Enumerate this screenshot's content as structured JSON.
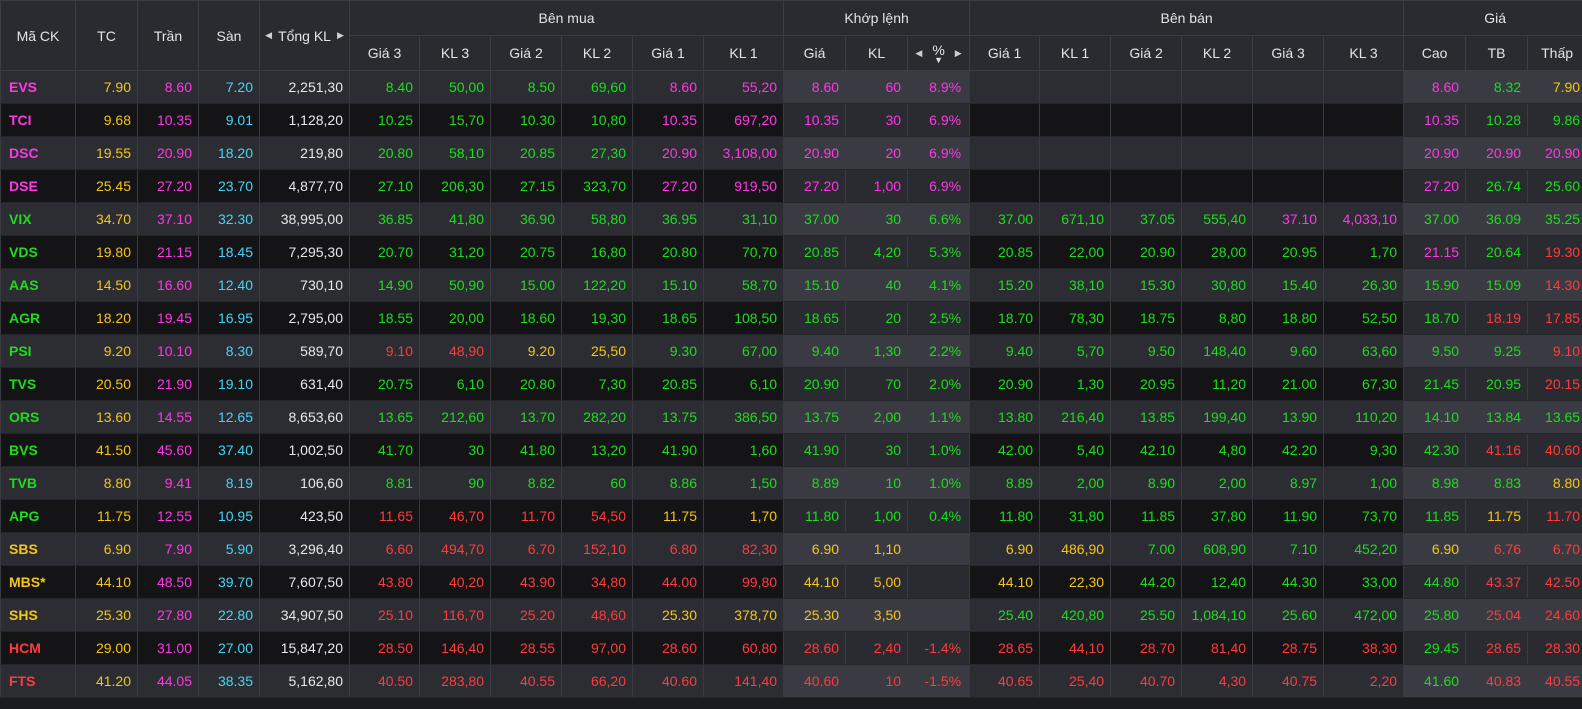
{
  "headers": {
    "symbol": "Mã CK",
    "ref": "TC",
    "ceil": "Trần",
    "floor": "Sàn",
    "total_vol": "Tổng KL",
    "buy_group": "Bên mua",
    "match_group": "Khớp lệnh",
    "sell_group": "Bên bán",
    "price_group": "Giá",
    "buy_cols": [
      "Giá 3",
      "KL 3",
      "Giá 2",
      "KL 2",
      "Giá 1",
      "KL 1"
    ],
    "match_cols": [
      "Giá",
      "KL",
      "%"
    ],
    "sell_cols": [
      "Giá 1",
      "KL 1",
      "Giá 2",
      "KL 2",
      "Giá 3",
      "KL 3"
    ],
    "price_cols": [
      "Cao",
      "TB",
      "Thấp"
    ]
  },
  "colors": {
    "reference": "#f5c518",
    "ceiling": "#ff37e4",
    "floor": "#45d4f5",
    "up": "#1cdd1c",
    "down": "#ff3b3b"
  },
  "rows": [
    {
      "sym": "EVS",
      "ref": "7.90",
      "ceil": "8.60",
      "floor": "7.20",
      "vol": "2,251,30",
      "b3": "8.40",
      "bv3": "50,00",
      "b2": "8.50",
      "bv2": "69,60",
      "b1": "8.60",
      "bv1": "55,20",
      "mp": "8.60",
      "mv": "60",
      "pct": "8.9%",
      "s1": "",
      "sv1": "",
      "s2": "",
      "sv2": "",
      "s3": "",
      "sv3": "",
      "hi": "8.60",
      "avg": "8.32",
      "lo": "7.90",
      "cls": {
        "sym": "c-ceil",
        "b3": "c-up",
        "bv3": "c-up",
        "b2": "c-up",
        "bv2": "c-up",
        "b1": "c-ceil",
        "bv1": "c-ceil",
        "mp": "c-ceil",
        "mv": "c-ceil",
        "pct": "c-ceil",
        "hi": "c-ceil",
        "avg": "c-up",
        "lo": "c-ref"
      }
    },
    {
      "sym": "TCI",
      "ref": "9.68",
      "ceil": "10.35",
      "floor": "9.01",
      "vol": "1,128,20",
      "b3": "10.25",
      "bv3": "15,70",
      "b2": "10.30",
      "bv2": "10,80",
      "b1": "10.35",
      "bv1": "697,20",
      "mp": "10.35",
      "mv": "30",
      "pct": "6.9%",
      "s1": "",
      "sv1": "",
      "s2": "",
      "sv2": "",
      "s3": "",
      "sv3": "",
      "hi": "10.35",
      "avg": "10.28",
      "lo": "9.86",
      "cls": {
        "sym": "c-ceil",
        "b3": "c-up",
        "bv3": "c-up",
        "b2": "c-up",
        "bv2": "c-up",
        "b1": "c-ceil",
        "bv1": "c-ceil",
        "mp": "c-ceil",
        "mv": "c-ceil",
        "pct": "c-ceil",
        "hi": "c-ceil",
        "avg": "c-up",
        "lo": "c-up"
      }
    },
    {
      "sym": "DSC",
      "ref": "19.55",
      "ceil": "20.90",
      "floor": "18.20",
      "vol": "219,80",
      "b3": "20.80",
      "bv3": "58,10",
      "b2": "20.85",
      "bv2": "27,30",
      "b1": "20.90",
      "bv1": "3,108,00",
      "mp": "20.90",
      "mv": "20",
      "pct": "6.9%",
      "s1": "",
      "sv1": "",
      "s2": "",
      "sv2": "",
      "s3": "",
      "sv3": "",
      "hi": "20.90",
      "avg": "20.90",
      "lo": "20.90",
      "cls": {
        "sym": "c-ceil",
        "b3": "c-up",
        "bv3": "c-up",
        "b2": "c-up",
        "bv2": "c-up",
        "b1": "c-ceil",
        "bv1": "c-ceil",
        "mp": "c-ceil",
        "mv": "c-ceil",
        "pct": "c-ceil",
        "hi": "c-ceil",
        "avg": "c-ceil",
        "lo": "c-ceil"
      }
    },
    {
      "sym": "DSE",
      "ref": "25.45",
      "ceil": "27.20",
      "floor": "23.70",
      "vol": "4,877,70",
      "b3": "27.10",
      "bv3": "206,30",
      "b2": "27.15",
      "bv2": "323,70",
      "b1": "27.20",
      "bv1": "919,50",
      "mp": "27.20",
      "mv": "1,00",
      "pct": "6.9%",
      "s1": "",
      "sv1": "",
      "s2": "",
      "sv2": "",
      "s3": "",
      "sv3": "",
      "hi": "27.20",
      "avg": "26.74",
      "lo": "25.60",
      "cls": {
        "sym": "c-ceil",
        "b3": "c-up",
        "bv3": "c-up",
        "b2": "c-up",
        "bv2": "c-up",
        "b1": "c-ceil",
        "bv1": "c-ceil",
        "mp": "c-ceil",
        "mv": "c-ceil",
        "pct": "c-ceil",
        "hi": "c-ceil",
        "avg": "c-up",
        "lo": "c-up"
      }
    },
    {
      "sym": "VIX",
      "ref": "34.70",
      "ceil": "37.10",
      "floor": "32.30",
      "vol": "38,995,00",
      "b3": "36.85",
      "bv3": "41,80",
      "b2": "36.90",
      "bv2": "58,80",
      "b1": "36.95",
      "bv1": "31,10",
      "mp": "37.00",
      "mv": "30",
      "pct": "6.6%",
      "s1": "37.00",
      "sv1": "671,10",
      "s2": "37.05",
      "sv2": "555,40",
      "s3": "37.10",
      "sv3": "4,033,10",
      "hi": "37.00",
      "avg": "36.09",
      "lo": "35.25",
      "cls": {
        "sym": "c-up",
        "b3": "c-up",
        "bv3": "c-up",
        "b2": "c-up",
        "bv2": "c-up",
        "b1": "c-up",
        "bv1": "c-up",
        "mp": "c-up",
        "mv": "c-up",
        "pct": "c-up",
        "s1": "c-up",
        "sv1": "c-up",
        "s2": "c-up",
        "sv2": "c-up",
        "s3": "c-ceil",
        "sv3": "c-ceil",
        "hi": "c-up",
        "avg": "c-up",
        "lo": "c-up"
      }
    },
    {
      "sym": "VDS",
      "ref": "19.80",
      "ceil": "21.15",
      "floor": "18.45",
      "vol": "7,295,30",
      "b3": "20.70",
      "bv3": "31,20",
      "b2": "20.75",
      "bv2": "16,80",
      "b1": "20.80",
      "bv1": "70,70",
      "mp": "20.85",
      "mv": "4,20",
      "pct": "5.3%",
      "s1": "20.85",
      "sv1": "22,00",
      "s2": "20.90",
      "sv2": "28,00",
      "s3": "20.95",
      "sv3": "1,70",
      "hi": "21.15",
      "avg": "20.64",
      "lo": "19.30",
      "cls": {
        "sym": "c-up",
        "b3": "c-up",
        "bv3": "c-up",
        "b2": "c-up",
        "bv2": "c-up",
        "b1": "c-up",
        "bv1": "c-up",
        "mp": "c-up",
        "mv": "c-up",
        "pct": "c-up",
        "s1": "c-up",
        "sv1": "c-up",
        "s2": "c-up",
        "sv2": "c-up",
        "s3": "c-up",
        "sv3": "c-up",
        "hi": "c-ceil",
        "avg": "c-up",
        "lo": "c-down"
      }
    },
    {
      "sym": "AAS",
      "ref": "14.50",
      "ceil": "16.60",
      "floor": "12.40",
      "vol": "730,10",
      "b3": "14.90",
      "bv3": "50,90",
      "b2": "15.00",
      "bv2": "122,20",
      "b1": "15.10",
      "bv1": "58,70",
      "mp": "15.10",
      "mv": "40",
      "pct": "4.1%",
      "s1": "15.20",
      "sv1": "38,10",
      "s2": "15.30",
      "sv2": "30,80",
      "s3": "15.40",
      "sv3": "26,30",
      "hi": "15.90",
      "avg": "15.09",
      "lo": "14.30",
      "cls": {
        "sym": "c-up",
        "b3": "c-up",
        "bv3": "c-up",
        "b2": "c-up",
        "bv2": "c-up",
        "b1": "c-up",
        "bv1": "c-up",
        "mp": "c-up",
        "mv": "c-up",
        "pct": "c-up",
        "s1": "c-up",
        "sv1": "c-up",
        "s2": "c-up",
        "sv2": "c-up",
        "s3": "c-up",
        "sv3": "c-up",
        "hi": "c-up",
        "avg": "c-up",
        "lo": "c-down"
      }
    },
    {
      "sym": "AGR",
      "ref": "18.20",
      "ceil": "19.45",
      "floor": "16.95",
      "vol": "2,795,00",
      "b3": "18.55",
      "bv3": "20,00",
      "b2": "18.60",
      "bv2": "19,30",
      "b1": "18.65",
      "bv1": "108,50",
      "mp": "18.65",
      "mv": "20",
      "pct": "2.5%",
      "s1": "18.70",
      "sv1": "78,30",
      "s2": "18.75",
      "sv2": "8,80",
      "s3": "18.80",
      "sv3": "52,50",
      "hi": "18.70",
      "avg": "18.19",
      "lo": "17.85",
      "cls": {
        "sym": "c-up",
        "b3": "c-up",
        "bv3": "c-up",
        "b2": "c-up",
        "bv2": "c-up",
        "b1": "c-up",
        "bv1": "c-up",
        "mp": "c-up",
        "mv": "c-up",
        "pct": "c-up",
        "s1": "c-up",
        "sv1": "c-up",
        "s2": "c-up",
        "sv2": "c-up",
        "s3": "c-up",
        "sv3": "c-up",
        "hi": "c-up",
        "avg": "c-down",
        "lo": "c-down"
      }
    },
    {
      "sym": "PSI",
      "ref": "9.20",
      "ceil": "10.10",
      "floor": "8.30",
      "vol": "589,70",
      "b3": "9.10",
      "bv3": "48,90",
      "b2": "9.20",
      "bv2": "25,50",
      "b1": "9.30",
      "bv1": "67,00",
      "mp": "9.40",
      "mv": "1,30",
      "pct": "2.2%",
      "s1": "9.40",
      "sv1": "5,70",
      "s2": "9.50",
      "sv2": "148,40",
      "s3": "9.60",
      "sv3": "63,60",
      "hi": "9.50",
      "avg": "9.25",
      "lo": "9.10",
      "cls": {
        "sym": "c-up",
        "b3": "c-down",
        "bv3": "c-down",
        "b2": "c-ref",
        "bv2": "c-ref",
        "b1": "c-up",
        "bv1": "c-up",
        "mp": "c-up",
        "mv": "c-up",
        "pct": "c-up",
        "s1": "c-up",
        "sv1": "c-up",
        "s2": "c-up",
        "sv2": "c-up",
        "s3": "c-up",
        "sv3": "c-up",
        "hi": "c-up",
        "avg": "c-up",
        "lo": "c-down"
      }
    },
    {
      "sym": "TVS",
      "ref": "20.50",
      "ceil": "21.90",
      "floor": "19.10",
      "vol": "631,40",
      "b3": "20.75",
      "bv3": "6,10",
      "b2": "20.80",
      "bv2": "7,30",
      "b1": "20.85",
      "bv1": "6,10",
      "mp": "20.90",
      "mv": "70",
      "pct": "2.0%",
      "s1": "20.90",
      "sv1": "1,30",
      "s2": "20.95",
      "sv2": "11,20",
      "s3": "21.00",
      "sv3": "67,30",
      "hi": "21.45",
      "avg": "20.95",
      "lo": "20.15",
      "cls": {
        "sym": "c-up",
        "b3": "c-up",
        "bv3": "c-up",
        "b2": "c-up",
        "bv2": "c-up",
        "b1": "c-up",
        "bv1": "c-up",
        "mp": "c-up",
        "mv": "c-up",
        "pct": "c-up",
        "s1": "c-up",
        "sv1": "c-up",
        "s2": "c-up",
        "sv2": "c-up",
        "s3": "c-up",
        "sv3": "c-up",
        "hi": "c-up",
        "avg": "c-up",
        "lo": "c-down"
      }
    },
    {
      "sym": "ORS",
      "ref": "13.60",
      "ceil": "14.55",
      "floor": "12.65",
      "vol": "8,653,60",
      "b3": "13.65",
      "bv3": "212,60",
      "b2": "13.70",
      "bv2": "282,20",
      "b1": "13.75",
      "bv1": "386,50",
      "mp": "13.75",
      "mv": "2,00",
      "pct": "1.1%",
      "s1": "13.80",
      "sv1": "216,40",
      "s2": "13.85",
      "sv2": "199,40",
      "s3": "13.90",
      "sv3": "110,20",
      "hi": "14.10",
      "avg": "13.84",
      "lo": "13.65",
      "cls": {
        "sym": "c-up",
        "b3": "c-up",
        "bv3": "c-up",
        "b2": "c-up",
        "bv2": "c-up",
        "b1": "c-up",
        "bv1": "c-up",
        "mp": "c-up",
        "mv": "c-up",
        "pct": "c-up",
        "s1": "c-up",
        "sv1": "c-up",
        "s2": "c-up",
        "sv2": "c-up",
        "s3": "c-up",
        "sv3": "c-up",
        "hi": "c-up",
        "avg": "c-up",
        "lo": "c-up"
      }
    },
    {
      "sym": "BVS",
      "ref": "41.50",
      "ceil": "45.60",
      "floor": "37.40",
      "vol": "1,002,50",
      "b3": "41.70",
      "bv3": "30",
      "b2": "41.80",
      "bv2": "13,20",
      "b1": "41.90",
      "bv1": "1,60",
      "mp": "41.90",
      "mv": "30",
      "pct": "1.0%",
      "s1": "42.00",
      "sv1": "5,40",
      "s2": "42.10",
      "sv2": "4,80",
      "s3": "42.20",
      "sv3": "9,30",
      "hi": "42.30",
      "avg": "41.16",
      "lo": "40.60",
      "cls": {
        "sym": "c-up",
        "b3": "c-up",
        "bv3": "c-up",
        "b2": "c-up",
        "bv2": "c-up",
        "b1": "c-up",
        "bv1": "c-up",
        "mp": "c-up",
        "mv": "c-up",
        "pct": "c-up",
        "s1": "c-up",
        "sv1": "c-up",
        "s2": "c-up",
        "sv2": "c-up",
        "s3": "c-up",
        "sv3": "c-up",
        "hi": "c-up",
        "avg": "c-down",
        "lo": "c-down"
      }
    },
    {
      "sym": "TVB",
      "ref": "8.80",
      "ceil": "9.41",
      "floor": "8.19",
      "vol": "106,60",
      "b3": "8.81",
      "bv3": "90",
      "b2": "8.82",
      "bv2": "60",
      "b1": "8.86",
      "bv1": "1,50",
      "mp": "8.89",
      "mv": "10",
      "pct": "1.0%",
      "s1": "8.89",
      "sv1": "2,00",
      "s2": "8.90",
      "sv2": "2,00",
      "s3": "8.97",
      "sv3": "1,00",
      "hi": "8.98",
      "avg": "8.83",
      "lo": "8.80",
      "cls": {
        "sym": "c-up",
        "b3": "c-up",
        "bv3": "c-up",
        "b2": "c-up",
        "bv2": "c-up",
        "b1": "c-up",
        "bv1": "c-up",
        "mp": "c-up",
        "mv": "c-up",
        "pct": "c-up",
        "s1": "c-up",
        "sv1": "c-up",
        "s2": "c-up",
        "sv2": "c-up",
        "s3": "c-up",
        "sv3": "c-up",
        "hi": "c-up",
        "avg": "c-up",
        "lo": "c-ref"
      }
    },
    {
      "sym": "APG",
      "ref": "11.75",
      "ceil": "12.55",
      "floor": "10.95",
      "vol": "423,50",
      "b3": "11.65",
      "bv3": "46,70",
      "b2": "11.70",
      "bv2": "54,50",
      "b1": "11.75",
      "bv1": "1,70",
      "mp": "11.80",
      "mv": "1,00",
      "pct": "0.4%",
      "s1": "11.80",
      "sv1": "31,80",
      "s2": "11.85",
      "sv2": "37,80",
      "s3": "11.90",
      "sv3": "73,70",
      "hi": "11.85",
      "avg": "11.75",
      "lo": "11.70",
      "cls": {
        "sym": "c-up",
        "b3": "c-down",
        "bv3": "c-down",
        "b2": "c-down",
        "bv2": "c-down",
        "b1": "c-ref",
        "bv1": "c-ref",
        "mp": "c-up",
        "mv": "c-up",
        "pct": "c-up",
        "s1": "c-up",
        "sv1": "c-up",
        "s2": "c-up",
        "sv2": "c-up",
        "s3": "c-up",
        "sv3": "c-up",
        "hi": "c-up",
        "avg": "c-ref",
        "lo": "c-down"
      }
    },
    {
      "sym": "SBS",
      "ref": "6.90",
      "ceil": "7.90",
      "floor": "5.90",
      "vol": "3,296,40",
      "b3": "6.60",
      "bv3": "494,70",
      "b2": "6.70",
      "bv2": "152,10",
      "b1": "6.80",
      "bv1": "82,30",
      "mp": "6.90",
      "mv": "1,10",
      "pct": "",
      "s1": "6.90",
      "sv1": "486,90",
      "s2": "7.00",
      "sv2": "608,90",
      "s3": "7.10",
      "sv3": "452,20",
      "hi": "6.90",
      "avg": "6.76",
      "lo": "6.70",
      "cls": {
        "sym": "c-ref",
        "b3": "c-down",
        "bv3": "c-down",
        "b2": "c-down",
        "bv2": "c-down",
        "b1": "c-down",
        "bv1": "c-down",
        "mp": "c-ref",
        "mv": "c-ref",
        "pct": "c-ref",
        "s1": "c-ref",
        "sv1": "c-ref",
        "s2": "c-up",
        "sv2": "c-up",
        "s3": "c-up",
        "sv3": "c-up",
        "hi": "c-ref",
        "avg": "c-down",
        "lo": "c-down"
      }
    },
    {
      "sym": "MBS*",
      "ref": "44.10",
      "ceil": "48.50",
      "floor": "39.70",
      "vol": "7,607,50",
      "b3": "43.80",
      "bv3": "40,20",
      "b2": "43.90",
      "bv2": "34,80",
      "b1": "44.00",
      "bv1": "99,80",
      "mp": "44.10",
      "mv": "5,00",
      "pct": "",
      "s1": "44.10",
      "sv1": "22,30",
      "s2": "44.20",
      "sv2": "12,40",
      "s3": "44.30",
      "sv3": "33,00",
      "hi": "44.80",
      "avg": "43.37",
      "lo": "42.50",
      "cls": {
        "sym": "c-ref",
        "b3": "c-down",
        "bv3": "c-down",
        "b2": "c-down",
        "bv2": "c-down",
        "b1": "c-down",
        "bv1": "c-down",
        "mp": "c-ref",
        "mv": "c-ref",
        "pct": "c-ref",
        "s1": "c-ref",
        "sv1": "c-ref",
        "s2": "c-up",
        "sv2": "c-up",
        "s3": "c-up",
        "sv3": "c-up",
        "hi": "c-up",
        "avg": "c-down",
        "lo": "c-down"
      }
    },
    {
      "sym": "SHS",
      "ref": "25.30",
      "ceil": "27.80",
      "floor": "22.80",
      "vol": "34,907,50",
      "b3": "25.10",
      "bv3": "116,70",
      "b2": "25.20",
      "bv2": "48,60",
      "b1": "25.30",
      "bv1": "378,70",
      "mp": "25.30",
      "mv": "3,50",
      "pct": "",
      "s1": "25.40",
      "sv1": "420,80",
      "s2": "25.50",
      "sv2": "1,084,10",
      "s3": "25.60",
      "sv3": "472,00",
      "hi": "25.80",
      "avg": "25.04",
      "lo": "24.60",
      "cls": {
        "sym": "c-ref",
        "b3": "c-down",
        "bv3": "c-down",
        "b2": "c-down",
        "bv2": "c-down",
        "b1": "c-ref",
        "bv1": "c-ref",
        "mp": "c-ref",
        "mv": "c-ref",
        "pct": "c-ref",
        "s1": "c-up",
        "sv1": "c-up",
        "s2": "c-up",
        "sv2": "c-up",
        "s3": "c-up",
        "sv3": "c-up",
        "hi": "c-up",
        "avg": "c-down",
        "lo": "c-down"
      }
    },
    {
      "sym": "HCM",
      "ref": "29.00",
      "ceil": "31.00",
      "floor": "27.00",
      "vol": "15,847,20",
      "b3": "28.50",
      "bv3": "146,40",
      "b2": "28.55",
      "bv2": "97,00",
      "b1": "28.60",
      "bv1": "60,80",
      "mp": "28.60",
      "mv": "2,40",
      "pct": "-1.4%",
      "s1": "28.65",
      "sv1": "44,10",
      "s2": "28.70",
      "sv2": "81,40",
      "s3": "28.75",
      "sv3": "38,30",
      "hi": "29.45",
      "avg": "28.65",
      "lo": "28.30",
      "cls": {
        "sym": "c-down",
        "b3": "c-down",
        "bv3": "c-down",
        "b2": "c-down",
        "bv2": "c-down",
        "b1": "c-down",
        "bv1": "c-down",
        "mp": "c-down",
        "mv": "c-down",
        "pct": "c-down",
        "s1": "c-down",
        "sv1": "c-down",
        "s2": "c-down",
        "sv2": "c-down",
        "s3": "c-down",
        "sv3": "c-down",
        "hi": "c-up",
        "avg": "c-down",
        "lo": "c-down"
      }
    },
    {
      "sym": "FTS",
      "ref": "41.20",
      "ceil": "44.05",
      "floor": "38.35",
      "vol": "5,162,80",
      "b3": "40.50",
      "bv3": "283,80",
      "b2": "40.55",
      "bv2": "66,20",
      "b1": "40.60",
      "bv1": "141,40",
      "mp": "40.60",
      "mv": "10",
      "pct": "-1.5%",
      "s1": "40.65",
      "sv1": "25,40",
      "s2": "40.70",
      "sv2": "4,30",
      "s3": "40.75",
      "sv3": "2,20",
      "hi": "41.60",
      "avg": "40.83",
      "lo": "40.55",
      "cls": {
        "sym": "c-down",
        "b3": "c-down",
        "bv3": "c-down",
        "b2": "c-down",
        "bv2": "c-down",
        "b1": "c-down",
        "bv1": "c-down",
        "mp": "c-down",
        "mv": "c-down",
        "pct": "c-down",
        "s1": "c-down",
        "sv1": "c-down",
        "s2": "c-down",
        "sv2": "c-down",
        "s3": "c-down",
        "sv3": "c-down",
        "hi": "c-up",
        "avg": "c-down",
        "lo": "c-down"
      }
    }
  ]
}
